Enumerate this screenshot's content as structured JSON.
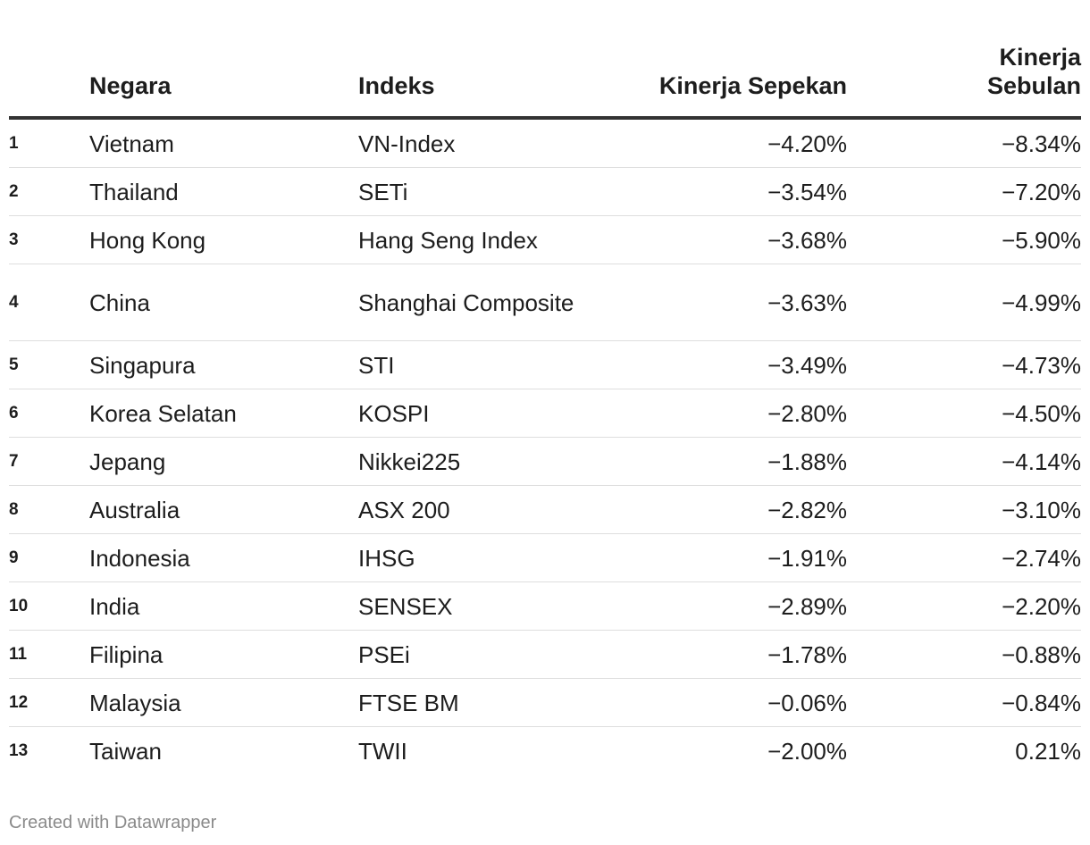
{
  "table": {
    "headers": {
      "rank": "",
      "country": "Negara",
      "index": "Indeks",
      "week": "Kinerja Sepekan",
      "month": "Kinerja Sebulan"
    },
    "rows": [
      {
        "rank": "1",
        "country": "Vietnam",
        "index": "VN-Index",
        "week": "−4.20%",
        "month": "−8.34%"
      },
      {
        "rank": "2",
        "country": "Thailand",
        "index": "SETi",
        "week": "−3.54%",
        "month": "−7.20%"
      },
      {
        "rank": "3",
        "country": "Hong Kong",
        "index": "Hang Seng Index",
        "week": "−3.68%",
        "month": "−5.90%"
      },
      {
        "rank": "4",
        "country": "China",
        "index": "Shanghai Composite",
        "week": "−3.63%",
        "month": "−4.99%"
      },
      {
        "rank": "5",
        "country": "Singapura",
        "index": "STI",
        "week": "−3.49%",
        "month": "−4.73%"
      },
      {
        "rank": "6",
        "country": "Korea Selatan",
        "index": "KOSPI",
        "week": "−2.80%",
        "month": "−4.50%"
      },
      {
        "rank": "7",
        "country": "Jepang",
        "index": "Nikkei225",
        "week": "−1.88%",
        "month": "−4.14%"
      },
      {
        "rank": "8",
        "country": "Australia",
        "index": "ASX 200",
        "week": "−2.82%",
        "month": "−3.10%"
      },
      {
        "rank": "9",
        "country": "Indonesia",
        "index": "IHSG",
        "week": "−1.91%",
        "month": "−2.74%"
      },
      {
        "rank": "10",
        "country": "India",
        "index": "SENSEX",
        "week": "−2.89%",
        "month": "−2.20%"
      },
      {
        "rank": "11",
        "country": "Filipina",
        "index": "PSEi",
        "week": "−1.78%",
        "month": "−0.88%"
      },
      {
        "rank": "12",
        "country": "Malaysia",
        "index": "FTSE BM",
        "week": "−0.06%",
        "month": "−0.84%"
      },
      {
        "rank": "13",
        "country": "Taiwan",
        "index": "TWII",
        "week": "−2.00%",
        "month": "0.21%"
      }
    ]
  },
  "footer": {
    "credit": "Created with Datawrapper"
  }
}
